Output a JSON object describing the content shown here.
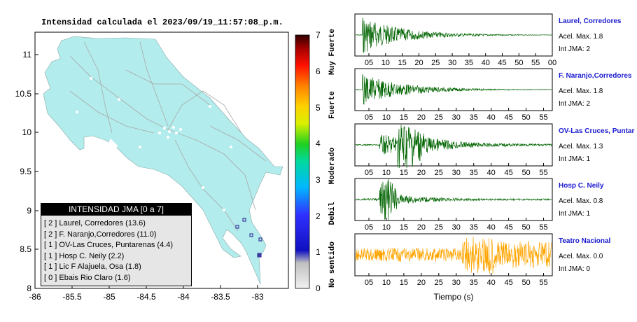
{
  "map": {
    "title": "Intensidad calculada el 2023/09/19_11:57:08_p.m.",
    "x_ticks": [
      "-86",
      "-85.5",
      "-85",
      "-84.5",
      "-84",
      "-83.5",
      "-83"
    ],
    "y_ticks": [
      "11",
      "10.5",
      "10",
      "9.5",
      "9",
      "8.5",
      "8"
    ],
    "legend_title": "INTENSIDAD JMA [0 a 7]",
    "legend_items": [
      "[ 2 ]  Laurel, Corredores (13.6)",
      "[ 2 ]  F. Naranjo,Corredores (11.0)",
      "[ 1 ]  OV-Las Cruces, Puntarenas (4.4)",
      "[ 1 ]  Hosp C. Neily (2.2)",
      "[ 1 ]  Lic F Alajuela, Osa (1.8)",
      "[ 0 ]  Ebais Rio Claro (1.6)"
    ],
    "land_color": "#b3ecec",
    "station_marker_color": "#3a3aa0"
  },
  "colorbar": {
    "ticks": [
      "0",
      "1",
      "2",
      "3",
      "4",
      "5",
      "6",
      "7"
    ],
    "labels": [
      "No sentido",
      "Debil",
      "Moderado",
      "Fuerte",
      "Muy Fuerte"
    ]
  },
  "stations": [
    {
      "name": "Laurel, Corredores",
      "acel": "Acel. Max. 1.8",
      "int": "Int JMA: 2",
      "color": "#006400",
      "ticks": [
        "05",
        "10",
        "15",
        "20",
        "25",
        "30",
        "35",
        "40",
        "45",
        "50",
        "55",
        "00"
      ]
    },
    {
      "name": "F. Naranjo,Corredores",
      "acel": "Acel. Max. 1.8",
      "int": "Int JMA: 2",
      "color": "#006400",
      "ticks": [
        "05",
        "10",
        "15",
        "20",
        "25",
        "30",
        "35",
        "40",
        "45",
        "50",
        "55"
      ]
    },
    {
      "name": "OV-Las Cruces, Puntar",
      "acel": "Acel. Max. 1.3",
      "int": "Int JMA: 1",
      "color": "#006400",
      "ticks": [
        "05",
        "10",
        "15",
        "20",
        "25",
        "30",
        "35",
        "40",
        "45",
        "50",
        "55"
      ]
    },
    {
      "name": "Hosp C. Neily",
      "acel": "Acel. Max. 0.8",
      "int": "Int JMA: 1",
      "color": "#006400",
      "ticks": [
        "05",
        "10",
        "15",
        "20",
        "25",
        "30",
        "35",
        "40",
        "45",
        "50",
        "55"
      ]
    },
    {
      "name": "Teatro Nacional",
      "acel": "Acel. Max. 0.0",
      "int": "Int JMA: 0",
      "color": "#ffa500",
      "ticks": [
        "05",
        "10",
        "15",
        "20",
        "25",
        "30",
        "35",
        "40",
        "45",
        "50",
        "55"
      ]
    }
  ],
  "xlabel": "Tiempo (s)",
  "chart_data": {
    "type": "line",
    "title": "Intensidad calculada el 2023/09/19_11:57:08_p.m.",
    "map_extent": {
      "lon": [
        -86,
        -82.5
      ],
      "lat": [
        8,
        11.3
      ]
    },
    "colorbar_range": [
      0,
      7
    ],
    "intensity_table": [
      {
        "jma": 2,
        "station": "Laurel, Corredores",
        "value": 13.6
      },
      {
        "jma": 2,
        "station": "F. Naranjo,Corredores",
        "value": 11.0
      },
      {
        "jma": 1,
        "station": "OV-Las Cruces, Puntarenas",
        "value": 4.4
      },
      {
        "jma": 1,
        "station": "Hosp C. Neily",
        "value": 2.2
      },
      {
        "jma": 1,
        "station": "Lic F Alajuela, Osa",
        "value": 1.8
      },
      {
        "jma": 0,
        "station": "Ebais Rio Claro",
        "value": 1.6
      }
    ],
    "series": [
      {
        "name": "Laurel, Corredores",
        "acel_max": 1.8,
        "jma": 2
      },
      {
        "name": "F. Naranjo,Corredores",
        "acel_max": 1.8,
        "jma": 2
      },
      {
        "name": "OV-Las Cruces, Puntar",
        "acel_max": 1.3,
        "jma": 1
      },
      {
        "name": "Hosp C. Neily",
        "acel_max": 0.8,
        "jma": 1
      },
      {
        "name": "Teatro Nacional",
        "acel_max": 0.0,
        "jma": 0
      }
    ],
    "xlabel": "Tiempo (s)",
    "xlim": [
      0,
      57
    ]
  }
}
